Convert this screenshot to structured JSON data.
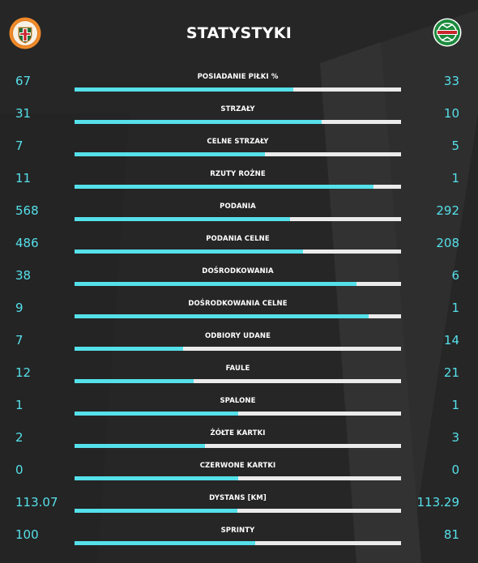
{
  "title": "STATYSTYKI",
  "colors": {
    "background": "#262626",
    "accent": "#55e0ea",
    "bar_track": "#ebebeb",
    "text": "#ffffff"
  },
  "home_logo": {
    "icon": "zaglebie-lubin-crest-icon",
    "text": "ZAGŁĘBIE LUBIN"
  },
  "away_logo": {
    "icon": "radomiak-crest-icon",
    "text": "RADOMIAK"
  },
  "stats": [
    {
      "label": "POSIADANIE PIŁKI %",
      "home": "67",
      "away": "33",
      "home_share": 0.67
    },
    {
      "label": "STRZAŁY",
      "home": "31",
      "away": "10",
      "home_share": 0.7561
    },
    {
      "label": "CELNE STRZAŁY",
      "home": "7",
      "away": "5",
      "home_share": 0.5833
    },
    {
      "label": "RZUTY ROŻNE",
      "home": "11",
      "away": "1",
      "home_share": 0.9167
    },
    {
      "label": "PODANIA",
      "home": "568",
      "away": "292",
      "home_share": 0.6605
    },
    {
      "label": "PODANIA CELNE",
      "home": "486",
      "away": "208",
      "home_share": 0.7003
    },
    {
      "label": "DOŚRODKOWANIA",
      "home": "38",
      "away": "6",
      "home_share": 0.8636
    },
    {
      "label": "DOŚRODKOWANIA CELNE",
      "home": "9",
      "away": "1",
      "home_share": 0.9
    },
    {
      "label": "ODBIORY UDANE",
      "home": "7",
      "away": "14",
      "home_share": 0.3333
    },
    {
      "label": "FAULE",
      "home": "12",
      "away": "21",
      "home_share": 0.3636
    },
    {
      "label": "SPALONE",
      "home": "1",
      "away": "1",
      "home_share": 0.5
    },
    {
      "label": "ŻÓŁTE KARTKI",
      "home": "2",
      "away": "3",
      "home_share": 0.4
    },
    {
      "label": "CZERWONE KARTKI",
      "home": "0",
      "away": "0",
      "home_share": 0.5
    },
    {
      "label": "DYSTANS [KM]",
      "home": "113.07",
      "away": "113.29",
      "home_share": 0.499
    },
    {
      "label": "SPRINTY",
      "home": "100",
      "away": "81",
      "home_share": 0.5525
    }
  ]
}
